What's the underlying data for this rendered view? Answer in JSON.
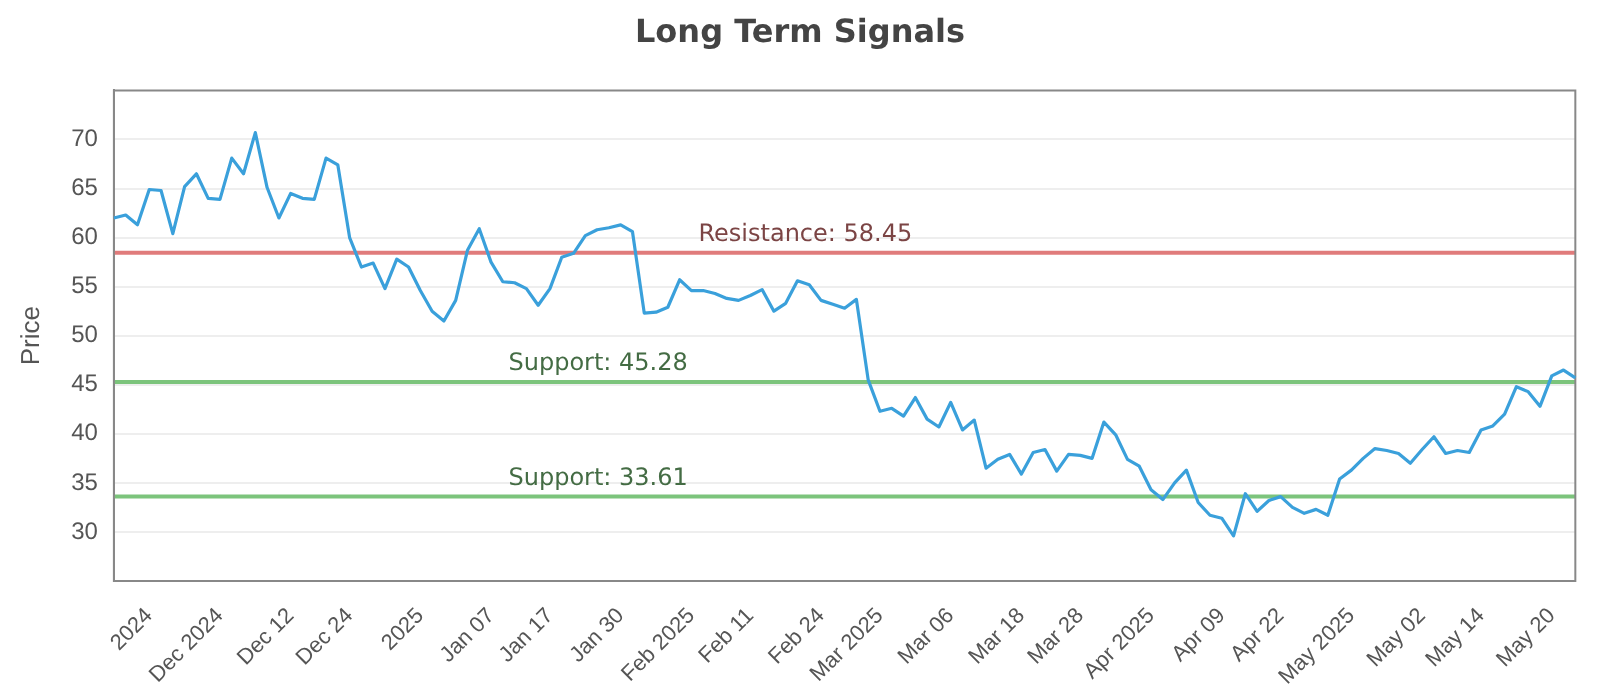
{
  "chart_data": {
    "type": "line",
    "title": "Long Term Signals",
    "ylabel": "Price",
    "categories": [
      null,
      null,
      null,
      "2024",
      null,
      null,
      null,
      null,
      null,
      "Dec 2024",
      null,
      null,
      null,
      null,
      null,
      "Dec 12",
      null,
      null,
      null,
      null,
      "Dec 24",
      null,
      null,
      null,
      null,
      null,
      "2025",
      null,
      null,
      null,
      null,
      null,
      "Jan 07",
      null,
      null,
      null,
      null,
      "Jan 17",
      null,
      null,
      null,
      null,
      null,
      "Jan 30",
      null,
      null,
      null,
      null,
      null,
      "Feb 2025",
      null,
      null,
      null,
      null,
      "Feb 11",
      null,
      null,
      null,
      null,
      null,
      "Feb 24",
      null,
      null,
      null,
      null,
      "Mar 2025",
      null,
      null,
      null,
      null,
      null,
      "Mar 06",
      null,
      null,
      null,
      null,
      null,
      "Mar 18",
      null,
      null,
      null,
      null,
      "Mar 28",
      null,
      null,
      null,
      null,
      null,
      "Apr 2025",
      null,
      null,
      null,
      null,
      null,
      "Apr 09",
      null,
      null,
      null,
      null,
      "Apr 22",
      null,
      null,
      null,
      null,
      null,
      "May 2025",
      null,
      null,
      null,
      null,
      null,
      "May 02",
      null,
      null,
      null,
      null,
      "May 14",
      null,
      null,
      null,
      null,
      null,
      "May 20",
      null,
      null
    ],
    "series": [
      {
        "color": "#3aa0db",
        "values": [
          62.0,
          62.3,
          61.3,
          64.9,
          64.8,
          60.4,
          65.2,
          66.5,
          64.0,
          63.9,
          68.1,
          66.5,
          70.7,
          65.1,
          62.0,
          64.5,
          64.0,
          63.9,
          68.1,
          67.4,
          60.0,
          57.0,
          57.4,
          54.8,
          57.8,
          57.0,
          54.6,
          52.5,
          51.5,
          53.6,
          58.7,
          60.9,
          57.5,
          55.5,
          55.4,
          54.8,
          53.1,
          54.8,
          58.0,
          58.4,
          60.2,
          60.8,
          61.0,
          61.3,
          60.6,
          52.3,
          52.4,
          52.9,
          55.7,
          54.6,
          54.6,
          54.3,
          53.8,
          53.6,
          54.1,
          54.7,
          52.5,
          53.3,
          55.6,
          55.2,
          53.6,
          53.2,
          52.8,
          53.7,
          45.5,
          42.3,
          42.6,
          41.8,
          43.7,
          41.5,
          40.7,
          43.2,
          40.4,
          41.4,
          36.5,
          37.4,
          37.9,
          35.9,
          38.1,
          38.4,
          36.2,
          37.9,
          37.8,
          37.5,
          41.2,
          39.9,
          37.4,
          36.7,
          34.3,
          33.3,
          35.0,
          36.3,
          33.0,
          31.7,
          31.4,
          29.6,
          33.9,
          32.1,
          33.2,
          33.6,
          32.5,
          31.9,
          32.3,
          31.7,
          35.4,
          36.3,
          37.5,
          38.5,
          38.3,
          38.0,
          37.0,
          38.4,
          39.7,
          38.0,
          38.3,
          38.1,
          40.4,
          40.8,
          42.0,
          44.8,
          44.3,
          42.8,
          45.9,
          46.5,
          45.7
        ]
      }
    ],
    "ylim": [
      25,
      75
    ],
    "yticks": [
      30,
      35,
      40,
      45,
      50,
      55,
      60,
      65,
      70
    ],
    "grid": "y",
    "legend": false,
    "marker": "none",
    "line_style": "solid",
    "ref_lines": [
      {
        "axis": "y",
        "value": 58.45,
        "label": "Resistance: 58.45",
        "color": "#e07b7b"
      },
      {
        "axis": "y",
        "value": 45.28,
        "label": "Support: 45.28",
        "color": "#7cc47c"
      },
      {
        "axis": "y",
        "value": 33.61,
        "label": "Support: 33.61",
        "color": "#7cc47c"
      }
    ]
  }
}
